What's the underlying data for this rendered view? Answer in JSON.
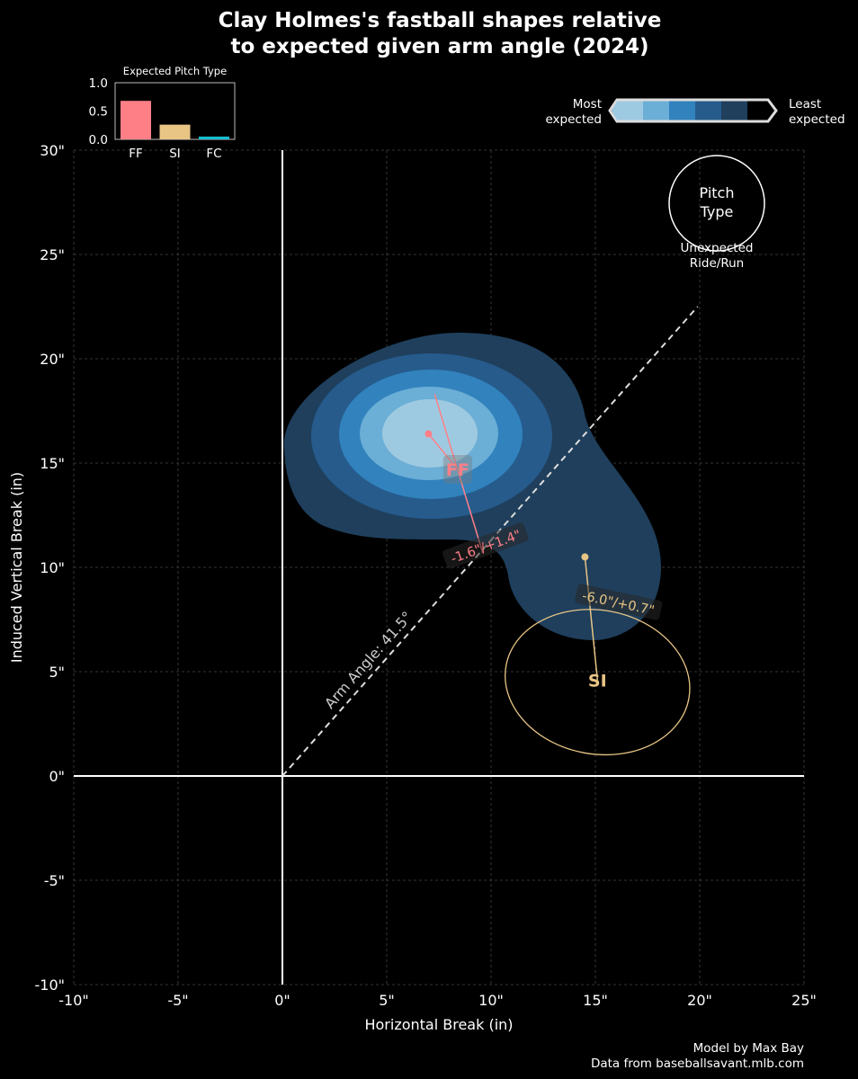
{
  "chart_data": {
    "type": "scatter",
    "title_line1": "Clay Holmes's fastball shapes relative",
    "title_line2": "to expected given arm angle (2024)",
    "xlabel": "Horizontal Break (in)",
    "ylabel": "Induced Vertical Break (in)",
    "xlim": [
      -10,
      25
    ],
    "ylim": [
      -10,
      30
    ],
    "xticks": [
      -10,
      -5,
      0,
      5,
      10,
      15,
      20,
      25
    ],
    "yticks": [
      -10,
      -5,
      0,
      5,
      10,
      15,
      20,
      25,
      30
    ],
    "xtick_labels": [
      "-10\"",
      "-5\"",
      "0\"",
      "5\"",
      "10\"",
      "15\"",
      "20\"",
      "25\""
    ],
    "ytick_labels": [
      "-10\"",
      "-5\"",
      "0\"",
      "5\"",
      "10\"",
      "15\"",
      "20\"",
      "25\"",
      "30\""
    ],
    "grid": true,
    "arm_angle": {
      "label": "Arm Angle: 41.5°",
      "degrees": 41.5,
      "end": [
        19.9,
        22.5
      ]
    },
    "pitches": [
      {
        "name": "FF",
        "color": "#ff7f87",
        "point": [
          7.0,
          16.4
        ],
        "label_pos": [
          8.4,
          14.7
        ],
        "vector_start": [
          7.3,
          18.3
        ],
        "vector_end": [
          9.6,
          10.7
        ],
        "delta_label": "-1.6\"/+1.4\"",
        "delta_pos": [
          9.75,
          11.0
        ],
        "delta_rot": -20
      },
      {
        "name": "SI",
        "color": "#e8c585",
        "point": [
          14.5,
          10.5
        ],
        "label_pos": [
          15.1,
          4.6
        ],
        "delta_label": "-6.0\"/+0.7\"",
        "delta_pos": [
          16.1,
          8.3
        ],
        "delta_rot": 12,
        "ellipse": {
          "center": [
            15.1,
            4.5
          ],
          "rx": 4.45,
          "ry": 3.45,
          "rot": 10
        }
      }
    ],
    "inset": {
      "title": "Expected Pitch Type",
      "categories": [
        "FF",
        "SI",
        "FC"
      ],
      "values": [
        0.68,
        0.26,
        0.05
      ],
      "colors": [
        "#ff7f87",
        "#e8c585",
        "#17becf"
      ],
      "yticks": [
        0.0,
        0.5,
        1.0
      ],
      "ytick_labels": [
        "0.0",
        "0.5",
        "1.0"
      ]
    },
    "colorbar": {
      "left_label": [
        "Most",
        "expected"
      ],
      "right_label": [
        "Least",
        "expected"
      ],
      "colors": [
        "#9ecae1",
        "#6baed6",
        "#3182bd",
        "#265b8c",
        "#1f3f5c",
        "#000000"
      ]
    },
    "legend": {
      "circle_text": [
        "Pitch",
        "Type"
      ],
      "below_text": [
        "Unexpected",
        "Ride/Run"
      ]
    },
    "credits": [
      "Model by Max Bay",
      "Data from baseballsavant.mlb.com"
    ]
  }
}
